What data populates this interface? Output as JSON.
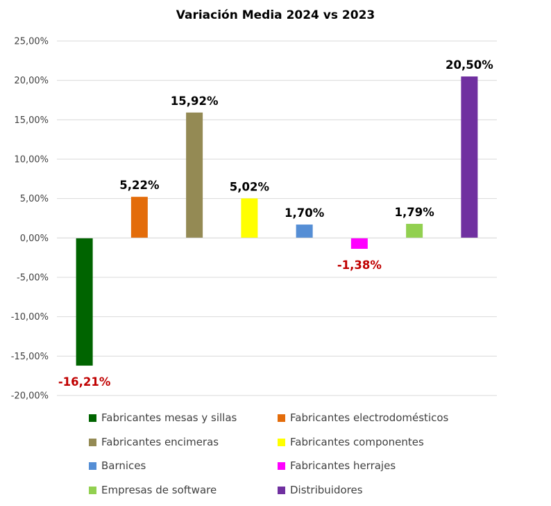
{
  "chart_data": {
    "type": "bar",
    "title": "Variación Media 2024 vs 2023",
    "categories": [
      "Fabricantes mesas y sillas",
      "Fabricantes electrodomésticos",
      "Fabricantes encimeras",
      "Fabricantes componentes",
      "Barnices",
      "Fabricantes herrajes",
      "Empresas de software",
      "Distribuidores"
    ],
    "values": [
      -16.21,
      5.22,
      15.92,
      5.02,
      1.7,
      -1.38,
      1.79,
      20.5
    ],
    "data_labels": [
      "-16,21%",
      "5,22%",
      "15,92%",
      "5,02%",
      "1,70%",
      "-1,38%",
      "1,79%",
      "20,50%"
    ],
    "colors": [
      "#006400",
      "#e36c0a",
      "#948a54",
      "#ffff00",
      "#558ed5",
      "#ff00ff",
      "#92d050",
      "#7030a0"
    ],
    "positive_label_color": "#000000",
    "negative_label_color": "#c00000",
    "ylim": [
      -20,
      25
    ],
    "yticks": [
      25,
      20,
      15,
      10,
      5,
      0,
      -5,
      -10,
      -15,
      -20
    ],
    "ytick_labels": [
      "25,00%",
      "20,00%",
      "15,00%",
      "10,00%",
      "5,00%",
      "0,00%",
      "-5,00%",
      "-10,00%",
      "-15,00%",
      "-20,00%"
    ],
    "xlabel": "",
    "ylabel": "",
    "grid": true,
    "legend_position": "bottom"
  }
}
